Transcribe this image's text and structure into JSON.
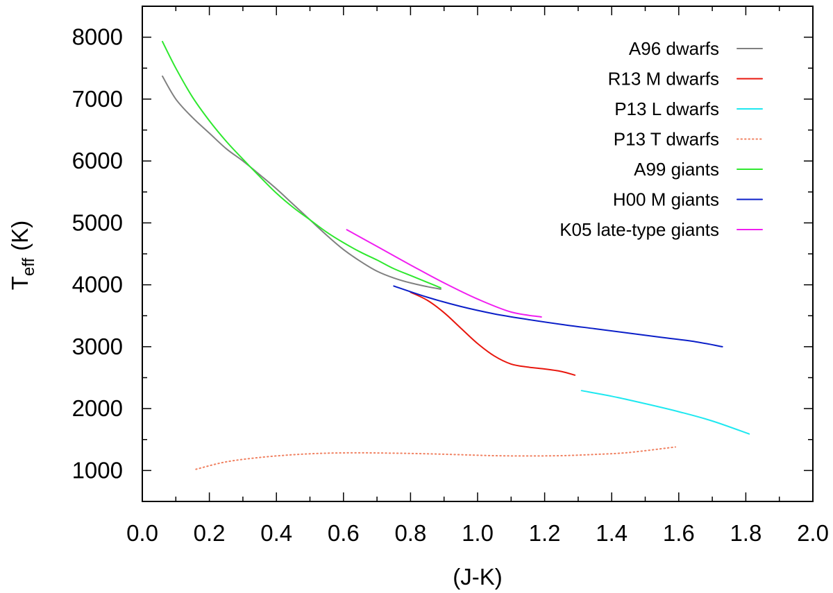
{
  "chart_data": {
    "type": "line",
    "xlabel": "(J-K)",
    "ylabel_main": "T",
    "ylabel_sub": "eff",
    "ylabel_unit": "(K)",
    "xlim": [
      0.0,
      2.0
    ],
    "ylim": [
      500,
      8500
    ],
    "x_ticks": [
      0.0,
      0.2,
      0.4,
      0.6,
      0.8,
      1.0,
      1.2,
      1.4,
      1.6,
      1.8,
      2.0
    ],
    "x_tick_labels": [
      "0.0",
      "0.2",
      "0.4",
      "0.6",
      "0.8",
      "1.0",
      "1.2",
      "1.4",
      "1.6",
      "1.8",
      "2.0"
    ],
    "x_minor_step": 0.1,
    "y_ticks": [
      1000,
      2000,
      3000,
      4000,
      5000,
      6000,
      7000,
      8000
    ],
    "y_tick_labels": [
      "1000",
      "2000",
      "3000",
      "4000",
      "5000",
      "6000",
      "7000",
      "8000"
    ],
    "y_minor_step": 500,
    "grid": false,
    "legend_position": "top-right",
    "series": [
      {
        "name": "A96 dwarfs",
        "color": "#808080",
        "dash": "solid",
        "x": [
          0.06,
          0.1,
          0.15,
          0.2,
          0.25,
          0.3,
          0.35,
          0.4,
          0.45,
          0.5,
          0.55,
          0.6,
          0.65,
          0.7,
          0.75,
          0.8,
          0.85,
          0.89
        ],
        "y": [
          7370,
          7000,
          6700,
          6450,
          6200,
          6000,
          5780,
          5550,
          5300,
          5050,
          4800,
          4570,
          4380,
          4220,
          4110,
          4030,
          3970,
          3930
        ]
      },
      {
        "name": "R13 M dwarfs",
        "color": "#e8160d",
        "dash": "solid",
        "x": [
          0.8,
          0.85,
          0.9,
          0.95,
          1.0,
          1.05,
          1.1,
          1.15,
          1.2,
          1.25,
          1.29
        ],
        "y": [
          3880,
          3750,
          3550,
          3300,
          3050,
          2850,
          2720,
          2670,
          2640,
          2600,
          2540
        ]
      },
      {
        "name": "P13 L dwarfs",
        "color": "#1ee8f0",
        "dash": "solid",
        "x": [
          1.31,
          1.4,
          1.5,
          1.6,
          1.7,
          1.81
        ],
        "y": [
          2290,
          2200,
          2080,
          1950,
          1800,
          1590
        ]
      },
      {
        "name": "P13 T dwarfs",
        "color": "#f08060",
        "dash": "dotted",
        "x": [
          0.16,
          0.25,
          0.35,
          0.45,
          0.55,
          0.65,
          0.75,
          0.85,
          0.95,
          1.05,
          1.15,
          1.25,
          1.35,
          1.45,
          1.59
        ],
        "y": [
          1020,
          1140,
          1210,
          1255,
          1280,
          1285,
          1280,
          1270,
          1255,
          1240,
          1235,
          1240,
          1260,
          1290,
          1380
        ]
      },
      {
        "name": "A99 giants",
        "color": "#2ee82e",
        "dash": "solid",
        "x": [
          0.06,
          0.1,
          0.15,
          0.2,
          0.25,
          0.3,
          0.35,
          0.4,
          0.45,
          0.5,
          0.55,
          0.6,
          0.65,
          0.7,
          0.75,
          0.8,
          0.85,
          0.89
        ],
        "y": [
          7930,
          7500,
          7030,
          6650,
          6320,
          6030,
          5750,
          5480,
          5250,
          5050,
          4850,
          4680,
          4530,
          4400,
          4260,
          4150,
          4040,
          3950
        ]
      },
      {
        "name": "H00 M giants",
        "color": "#0a1ec8",
        "dash": "solid",
        "x": [
          0.75,
          0.85,
          0.95,
          1.05,
          1.15,
          1.25,
          1.35,
          1.45,
          1.55,
          1.65,
          1.73
        ],
        "y": [
          3980,
          3800,
          3650,
          3530,
          3440,
          3360,
          3290,
          3220,
          3150,
          3080,
          3000
        ]
      },
      {
        "name": "K05 late-type giants",
        "color": "#f01ef0",
        "dash": "solid",
        "x": [
          0.61,
          0.7,
          0.8,
          0.9,
          1.0,
          1.1,
          1.19
        ],
        "y": [
          4890,
          4620,
          4320,
          4030,
          3770,
          3560,
          3480
        ]
      }
    ]
  }
}
